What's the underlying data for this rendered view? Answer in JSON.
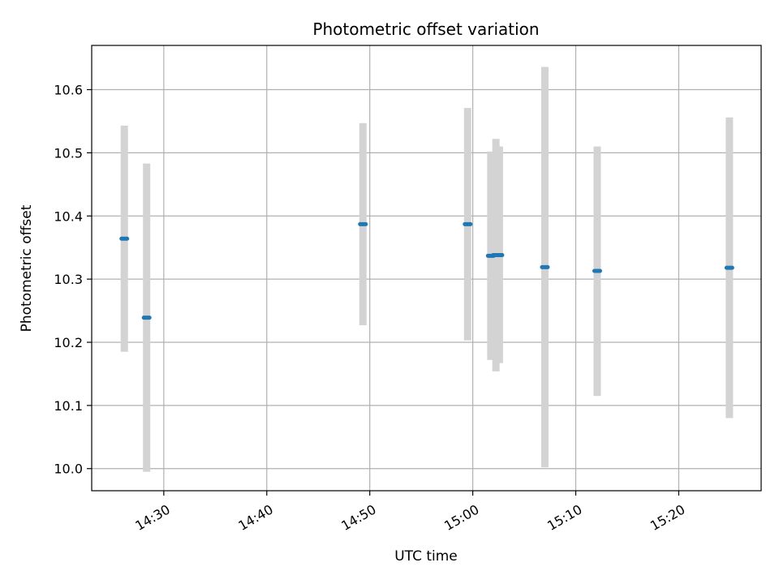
{
  "chart_data": {
    "type": "scatter",
    "title": "Photometric offset variation",
    "xlabel": "UTC time",
    "ylabel": "Photometric offset",
    "x_axis_type": "time",
    "xlim": [
      "14:23:00",
      "15:28:00"
    ],
    "ylim": [
      9.965,
      10.67
    ],
    "grid": true,
    "x_ticks": [
      "14:30",
      "14:40",
      "14:50",
      "15:00",
      "15:10",
      "15:20"
    ],
    "y_ticks": [
      "10.0",
      "10.1",
      "10.2",
      "10.3",
      "10.4",
      "10.5",
      "10.6"
    ],
    "colors": {
      "point": "#1f77b4",
      "errorbar": "#d3d3d3",
      "grid": "#b0b0b0"
    },
    "points": [
      {
        "time": "14:26:10",
        "value": 10.364,
        "error_low": 10.185,
        "error_high": 10.543
      },
      {
        "time": "14:28:20",
        "value": 10.239,
        "error_low": 9.995,
        "error_high": 10.483
      },
      {
        "time": "14:49:20",
        "value": 10.387,
        "error_low": 10.227,
        "error_high": 10.547
      },
      {
        "time": "14:59:30",
        "value": 10.387,
        "error_low": 10.203,
        "error_high": 10.571
      },
      {
        "time": "15:01:45",
        "value": 10.337,
        "error_low": 10.172,
        "error_high": 10.502
      },
      {
        "time": "15:02:15",
        "value": 10.338,
        "error_low": 10.154,
        "error_high": 10.522
      },
      {
        "time": "15:02:35",
        "value": 10.338,
        "error_low": 10.167,
        "error_high": 10.51
      },
      {
        "time": "15:07:00",
        "value": 10.319,
        "error_low": 10.002,
        "error_high": 10.636
      },
      {
        "time": "15:12:05",
        "value": 10.313,
        "error_low": 10.115,
        "error_high": 10.51
      },
      {
        "time": "15:24:55",
        "value": 10.318,
        "error_low": 10.08,
        "error_high": 10.556
      }
    ]
  }
}
